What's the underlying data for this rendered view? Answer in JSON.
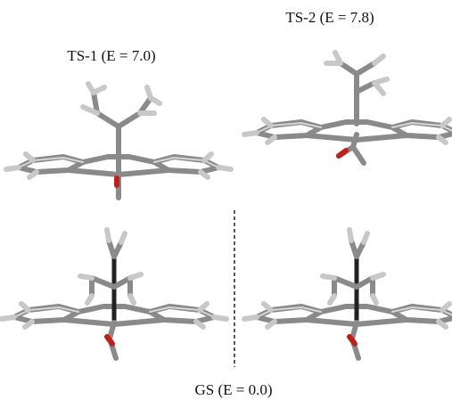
{
  "labels": {
    "ts1": "TS-1 (E = 7.0)",
    "ts2": "TS-2 (E = 7.8)",
    "gs": "GS (E = 0.0)"
  }
}
